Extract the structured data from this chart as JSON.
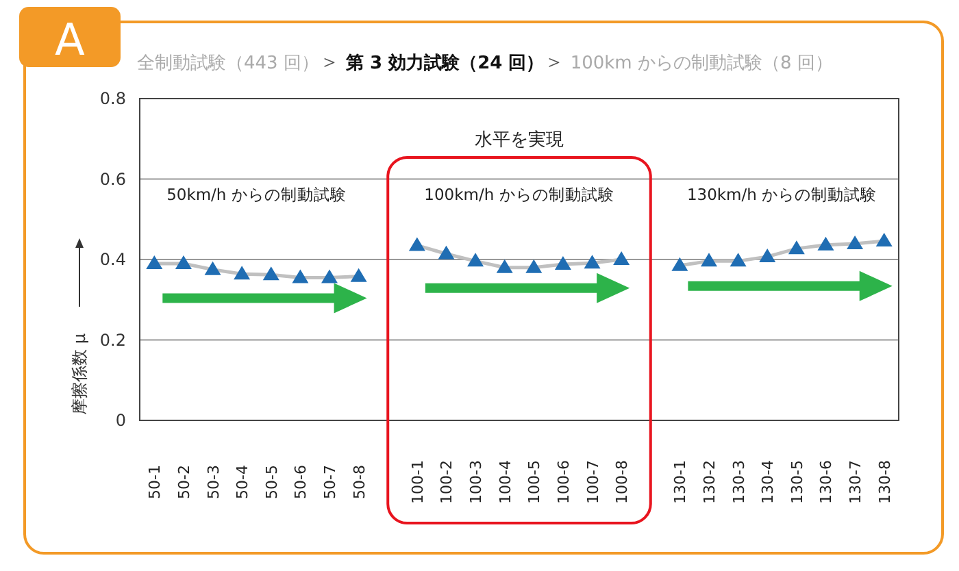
{
  "chart_data": {
    "type": "line",
    "title": "全制動試験（443 回）＞ 第 3 効力試験（24 回）＞ 100km からの制動試験（8 回）",
    "ylabel": "摩擦係数 μ",
    "annotations": [
      "A",
      "水平を実現",
      "50km/h からの制動試験",
      "100km/h からの制動試験",
      "130km/h からの制動試験"
    ],
    "categories": [
      "50-1",
      "50-2",
      "50-3",
      "50-4",
      "50-5",
      "50-6",
      "50-7",
      "50-8",
      null,
      "100-1",
      "100-2",
      "100-3",
      "100-4",
      "100-5",
      "100-6",
      "100-7",
      "100-8",
      null,
      "130-1",
      "130-2",
      "130-3",
      "130-4",
      "130-5",
      "130-6",
      "130-7",
      "130-8"
    ],
    "series": [
      {
        "color": "#1f6db3",
        "values": [
          0.39,
          0.39,
          0.375,
          0.364,
          0.362,
          0.355,
          0.355,
          0.358,
          null,
          0.435,
          0.414,
          0.396,
          0.38,
          0.38,
          0.388,
          0.391,
          0.4,
          null,
          0.385,
          0.396,
          0.396,
          0.407,
          0.427,
          0.436,
          0.439,
          0.446
        ]
      }
    ],
    "ylim": [
      0,
      0.8
    ],
    "yticks": [
      0,
      0.2,
      0.4,
      0.6,
      0.8
    ],
    "grid": "y",
    "marker": "triangle"
  }
}
